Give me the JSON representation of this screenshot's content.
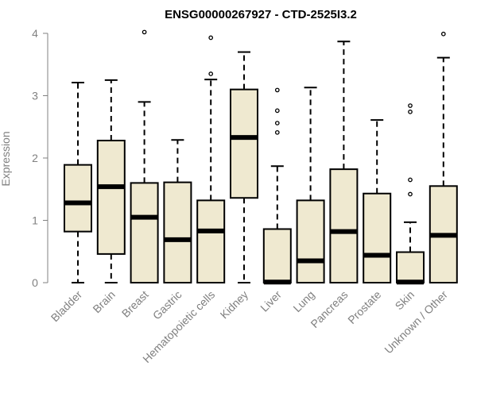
{
  "chart_data": {
    "type": "boxplot",
    "title": "ENSG00000267927 - CTD-2525I3.2",
    "xlabel": "",
    "ylabel": "Expression",
    "ylim": [
      0,
      4
    ],
    "yticks": [
      0,
      1,
      2,
      3,
      4
    ],
    "box_fill": "#efe9d0",
    "categories": [
      "Bladder",
      "Brain",
      "Breast",
      "Gastric",
      "Hematopoietic cells",
      "Kidney",
      "Liver",
      "Lung",
      "Pancreas",
      "Prostate",
      "Skin",
      "Unknown / Other"
    ],
    "boxes": [
      {
        "whisker_low": 0,
        "q1": 0.82,
        "median": 1.28,
        "q3": 1.89,
        "whisker_high": 3.21,
        "outliers": []
      },
      {
        "whisker_low": 0,
        "q1": 0.46,
        "median": 1.54,
        "q3": 2.28,
        "whisker_high": 3.25,
        "outliers": []
      },
      {
        "whisker_low": 0,
        "q1": 0,
        "median": 1.05,
        "q3": 1.6,
        "whisker_high": 2.9,
        "outliers": [
          4.02
        ]
      },
      {
        "whisker_low": 0,
        "q1": 0,
        "median": 0.69,
        "q3": 1.61,
        "whisker_high": 2.29,
        "outliers": []
      },
      {
        "whisker_low": 0,
        "q1": 0,
        "median": 0.83,
        "q3": 1.32,
        "whisker_high": 3.26,
        "outliers": [
          3.35,
          3.93
        ]
      },
      {
        "whisker_low": 0,
        "q1": 1.36,
        "median": 2.33,
        "q3": 3.1,
        "whisker_high": 3.7,
        "outliers": []
      },
      {
        "whisker_low": 0,
        "q1": 0,
        "median": 0.01,
        "q3": 0.86,
        "whisker_high": 1.87,
        "outliers": [
          2.41,
          2.56,
          2.76,
          3.09
        ]
      },
      {
        "whisker_low": 0,
        "q1": 0,
        "median": 0.35,
        "q3": 1.32,
        "whisker_high": 3.13,
        "outliers": []
      },
      {
        "whisker_low": 0,
        "q1": 0,
        "median": 0.82,
        "q3": 1.82,
        "whisker_high": 3.87,
        "outliers": []
      },
      {
        "whisker_low": 0,
        "q1": 0,
        "median": 0.44,
        "q3": 1.43,
        "whisker_high": 2.61,
        "outliers": []
      },
      {
        "whisker_low": 0,
        "q1": 0,
        "median": 0.01,
        "q3": 0.49,
        "whisker_high": 0.97,
        "outliers": [
          1.42,
          1.65,
          2.74,
          2.84
        ]
      },
      {
        "whisker_low": 0,
        "q1": 0,
        "median": 0.76,
        "q3": 1.55,
        "whisker_high": 3.61,
        "outliers": [
          3.99
        ]
      }
    ]
  }
}
